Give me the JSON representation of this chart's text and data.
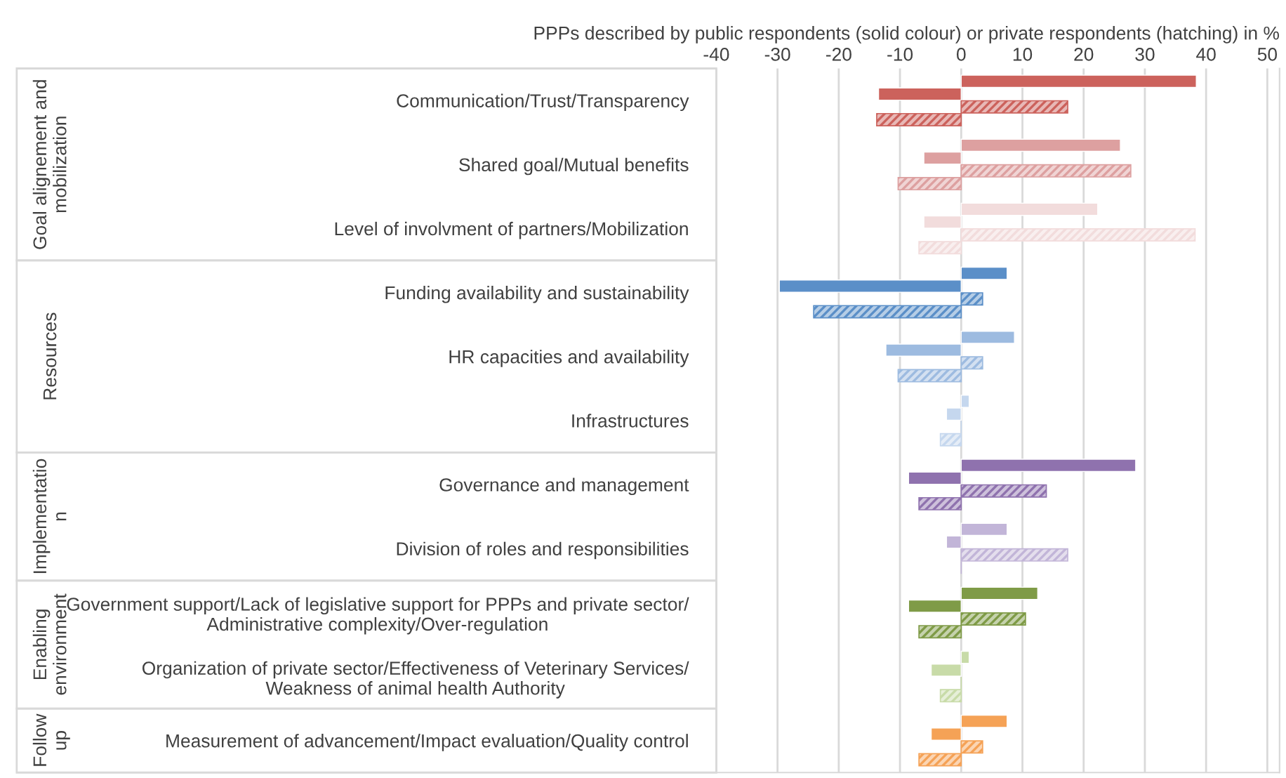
{
  "chart_data": {
    "type": "bar",
    "orientation": "horizontal",
    "xlabel": "PPPs described by public respondents (solid colour) or private respondents (hatching) in %",
    "categories": [
      "Communication/Trust/Transparency",
      "Shared goal/Mutual benefits",
      "Level of involvment of partners/Mobilization",
      "Funding availability and sustainability",
      "HR capacities and availability",
      "Infrastructures",
      "Governance and management",
      "Division of roles and responsibilities",
      "Government support/Lack of legislative support for PPPs and private sector/\nAdministrative complexity/Over-regulation",
      "Organization of private sector/Effectiveness of Veterinary Services/\nWeakness of animal health Authority",
      "Measurement of advancement/Impact evaluation/Quality control"
    ],
    "series": [
      {
        "values": [
          38.4,
          26,
          22.3,
          7.5,
          8.7,
          1.3,
          28.5,
          7.5,
          12.5,
          1.3,
          7.5
        ],
        "colors": [
          "#cc625c",
          "#dda0a0",
          "#f2dcdc",
          "#5b8fc8",
          "#9dbbe0",
          "#c5d7ee",
          "#8f72ae",
          "#c2b5d8",
          "#7f9b47",
          "#c8dba8",
          "#f5a256"
        ]
      },
      {
        "values": [
          -13.5,
          -6.1,
          -6.1,
          -29.7,
          -12.3,
          -2.4,
          -8.6,
          -2.4,
          -8.6,
          -4.9,
          -4.9
        ],
        "colors": [
          "#cc625c",
          "#dda0a0",
          "#f2dcdc",
          "#5b8fc8",
          "#9dbbe0",
          "#c5d7ee",
          "#8f72ae",
          "#c2b5d8",
          "#7f9b47",
          "#c8dba8",
          "#f5a256"
        ]
      },
      {
        "values": [
          17.4,
          27.7,
          38.2,
          3.5,
          3.5,
          0,
          13.9,
          17.4,
          10.5,
          0,
          3.5
        ],
        "colors": [
          "#cc625c",
          "#dda0a0",
          "#f2dcdc",
          "#5b8fc8",
          "#9dbbe0",
          "#c5d7ee",
          "#8f72ae",
          "#c2b5d8",
          "#7f9b47",
          "#c8dba8",
          "#f5a256"
        ]
      },
      {
        "values": [
          -13.8,
          -10.3,
          -6.9,
          -24.1,
          -10.3,
          -3.4,
          -6.9,
          0,
          -6.9,
          -3.4,
          -6.9
        ],
        "colors": [
          "#cc625c",
          "#dda0a0",
          "#f2dcdc",
          "#5b8fc8",
          "#9dbbe0",
          "#c5d7ee",
          "#8f72ae",
          "#c2b5d8",
          "#7f9b47",
          "#c8dba8",
          "#f5a256"
        ]
      }
    ],
    "xlim": [
      -40,
      52
    ],
    "xticks": [
      -40,
      -30,
      -20,
      -10,
      0,
      10,
      20,
      30,
      40,
      50
    ],
    "grid": "x",
    "annotations": [
      "Goal alignement and\nmobilization",
      "Resources",
      "Implementatio\nn",
      "Enabling\nenvironment",
      "Follow\nup"
    ]
  }
}
